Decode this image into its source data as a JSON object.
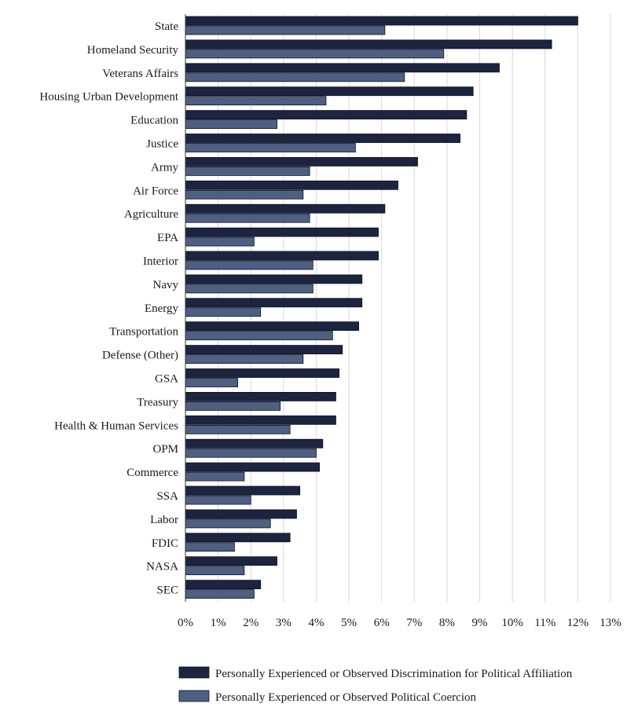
{
  "chart_data": {
    "type": "bar",
    "orientation": "horizontal",
    "title": "",
    "xlabel": "",
    "ylabel": "",
    "xlim": [
      0,
      13
    ],
    "x_ticks": [
      "0%",
      "1%",
      "2%",
      "3%",
      "4%",
      "5%",
      "6%",
      "7%",
      "8%",
      "9%",
      "10%",
      "11%",
      "12%",
      "13%"
    ],
    "grid": "vertical",
    "legend_position": "bottom",
    "categories": [
      "State",
      "Homeland Security",
      "Veterans Affairs",
      "Housing Urban Development",
      "Education",
      "Justice",
      "Army",
      "Air Force",
      "Agriculture",
      "EPA",
      "Interior",
      "Navy",
      "Energy",
      "Transportation",
      "Defense (Other)",
      "GSA",
      "Treasury",
      "Health & Human Services",
      "OPM",
      "Commerce",
      "SSA",
      "Labor",
      "FDIC",
      "NASA",
      "SEC"
    ],
    "series": [
      {
        "name": "Personally Experienced or Observed Discrimination for Political Affiliation",
        "color": "#1c2440",
        "values": [
          12.0,
          11.2,
          9.6,
          8.8,
          8.6,
          8.4,
          7.1,
          6.5,
          6.1,
          5.9,
          5.9,
          5.4,
          5.4,
          5.3,
          4.8,
          4.7,
          4.6,
          4.6,
          4.2,
          4.1,
          3.5,
          3.4,
          3.2,
          2.8,
          2.3
        ]
      },
      {
        "name": "Personally Experienced or Observed Political Coercion",
        "color": "#4f5f82",
        "values": [
          6.1,
          7.9,
          6.7,
          4.3,
          2.8,
          5.2,
          3.8,
          3.6,
          3.8,
          2.1,
          3.9,
          3.9,
          2.3,
          4.5,
          3.6,
          1.6,
          2.9,
          3.2,
          4.0,
          1.8,
          2.0,
          2.6,
          1.5,
          1.8,
          2.1
        ]
      }
    ]
  }
}
